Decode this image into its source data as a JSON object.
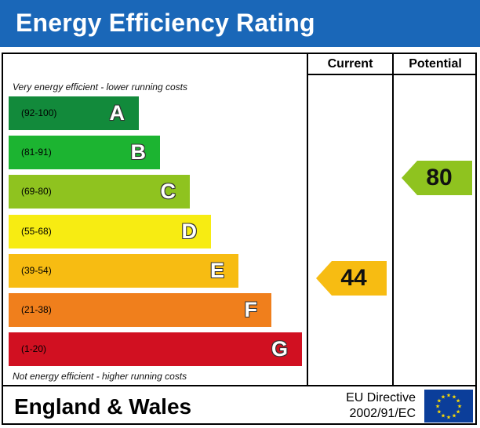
{
  "header": {
    "title": "Energy Efficiency Rating"
  },
  "columns": {
    "current": "Current",
    "potential": "Potential"
  },
  "notes": {
    "top": "Very energy efficient - lower running costs",
    "bottom": "Not energy efficient - higher running costs"
  },
  "chart_data": {
    "type": "bar",
    "title": "Energy Efficiency Rating",
    "categories": [
      "A",
      "B",
      "C",
      "D",
      "E",
      "F",
      "G"
    ],
    "bands": [
      {
        "letter": "A",
        "range": "(92-100)",
        "min": 92,
        "max": 100,
        "color": "#128a3b"
      },
      {
        "letter": "B",
        "range": "(81-91)",
        "min": 81,
        "max": 91,
        "color": "#1cb431"
      },
      {
        "letter": "C",
        "range": "(69-80)",
        "min": 69,
        "max": 80,
        "color": "#8fc31f"
      },
      {
        "letter": "D",
        "range": "(55-68)",
        "min": 55,
        "max": 68,
        "color": "#f7ec12"
      },
      {
        "letter": "E",
        "range": "(39-54)",
        "min": 39,
        "max": 54,
        "color": "#f7bc12"
      },
      {
        "letter": "F",
        "range": "(21-38)",
        "min": 21,
        "max": 38,
        "color": "#f07f1c"
      },
      {
        "letter": "G",
        "range": "(1-20)",
        "min": 1,
        "max": 20,
        "color": "#d11021"
      }
    ],
    "current": {
      "value": 44,
      "band": "E",
      "color": "#f7bc12"
    },
    "potential": {
      "value": 80,
      "band": "C",
      "color": "#8fc31f"
    }
  },
  "footer": {
    "region": "England & Wales",
    "directive_line1": "EU Directive",
    "directive_line2": "2002/91/EC"
  }
}
